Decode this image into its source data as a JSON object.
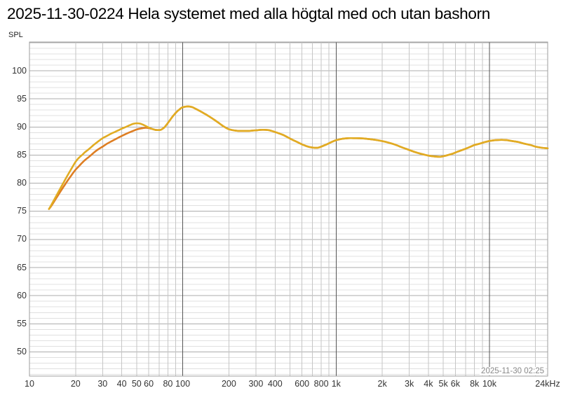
{
  "header": {
    "title": "2025-11-30-0224 Hela systemet med alla högtal med och utan bashorn"
  },
  "chart_data": {
    "type": "line",
    "title": "2025-11-30-0224 Hela systemet med alla högtal med och utan bashorn",
    "ylabel": "SPL",
    "xlabel": "",
    "timestamp": "2025-11-30 02:25",
    "x_scale": "log",
    "xlim": [
      10,
      24000
    ],
    "ylim": [
      45.7,
      105.1
    ],
    "grid": true,
    "legend": "none",
    "y_major_ticks": [
      105,
      100,
      95,
      90,
      85,
      80,
      75,
      70,
      65,
      60,
      55,
      50
    ],
    "y_tick_labels": [
      "100",
      "95",
      "90",
      "85",
      "80",
      "75",
      "70",
      "65",
      "60",
      "55",
      "50"
    ],
    "y_labeled_values": [
      100,
      95,
      90,
      85,
      80,
      75,
      70,
      65,
      60,
      55,
      50
    ],
    "y_minor_step": 1,
    "x_gridlines": [
      20,
      30,
      40,
      50,
      60,
      70,
      80,
      90,
      100,
      200,
      300,
      400,
      500,
      600,
      700,
      800,
      900,
      1000,
      2000,
      3000,
      4000,
      5000,
      6000,
      7000,
      8000,
      9000,
      10000,
      20000
    ],
    "x_dark_gridlines": [
      100,
      1000,
      10000
    ],
    "x_tick_labels": [
      {
        "label": "10",
        "f": 10
      },
      {
        "label": "20",
        "f": 20
      },
      {
        "label": "30",
        "f": 30
      },
      {
        "label": "40",
        "f": 40
      },
      {
        "label": "50",
        "f": 50
      },
      {
        "label": "60",
        "f": 60
      },
      {
        "label": "80",
        "f": 80
      },
      {
        "label": "100",
        "f": 100
      },
      {
        "label": "200",
        "f": 200
      },
      {
        "label": "300",
        "f": 300
      },
      {
        "label": "400",
        "f": 400
      },
      {
        "label": "600",
        "f": 600
      },
      {
        "label": "800",
        "f": 800
      },
      {
        "label": "1k",
        "f": 1000
      },
      {
        "label": "2k",
        "f": 2000
      },
      {
        "label": "3k",
        "f": 3000
      },
      {
        "label": "4k",
        "f": 4000
      },
      {
        "label": "5k",
        "f": 5000
      },
      {
        "label": "6k",
        "f": 6000
      },
      {
        "label": "8k",
        "f": 8000
      },
      {
        "label": "10k",
        "f": 10000
      },
      {
        "label": "24kHz",
        "f": 24000
      }
    ],
    "colors": {
      "curve_yellow": "#E1AC23",
      "curve_orange": "#DE7E23",
      "grid_minor_h": "#E0E0E0",
      "grid_major_h": "#ADADAD",
      "grid_minor_v": "#C6C6C6",
      "grid_dark_v": "#565656",
      "border": "#9E9E9E"
    },
    "series": [
      {
        "name": "curve-orange",
        "color": "#DE7E23",
        "points": [
          [
            13.4,
            75.4
          ],
          [
            14,
            76.1
          ],
          [
            15,
            77.4
          ],
          [
            16,
            78.6
          ],
          [
            17,
            79.7
          ],
          [
            18,
            80.7
          ],
          [
            19,
            81.6
          ],
          [
            20,
            82.4
          ],
          [
            21,
            83.0
          ],
          [
            22,
            83.6
          ],
          [
            23,
            84.1
          ],
          [
            24,
            84.5
          ],
          [
            25,
            84.9
          ],
          [
            26.5,
            85.5
          ],
          [
            28,
            86.0
          ],
          [
            30,
            86.5
          ],
          [
            32,
            87.0
          ],
          [
            34,
            87.4
          ],
          [
            36,
            87.75
          ],
          [
            38,
            88.1
          ],
          [
            40,
            88.4
          ],
          [
            42.5,
            88.75
          ],
          [
            45,
            89.05
          ],
          [
            47.5,
            89.3
          ],
          [
            50,
            89.55
          ],
          [
            52.5,
            89.7
          ],
          [
            55,
            89.8
          ],
          [
            57.5,
            89.85
          ],
          [
            60,
            89.8
          ],
          [
            62,
            89.7
          ],
          [
            64,
            89.6
          ],
          [
            66,
            89.5
          ],
          [
            68,
            89.45
          ],
          [
            70,
            89.45
          ],
          [
            72,
            89.5
          ],
          [
            75,
            89.8
          ],
          [
            78,
            90.3
          ],
          [
            80,
            90.7
          ],
          [
            82,
            91.1
          ],
          [
            85,
            91.7
          ],
          [
            88,
            92.2
          ],
          [
            90,
            92.5
          ],
          [
            93,
            92.9
          ],
          [
            95,
            93.1
          ],
          [
            98,
            93.4
          ],
          [
            100,
            93.5
          ],
          [
            104,
            93.6
          ],
          [
            108,
            93.65
          ],
          [
            112,
            93.6
          ],
          [
            116,
            93.5
          ],
          [
            120,
            93.3
          ],
          [
            126,
            93.0
          ],
          [
            132,
            92.7
          ],
          [
            140,
            92.3
          ],
          [
            150,
            91.8
          ],
          [
            160,
            91.3
          ],
          [
            170,
            90.8
          ],
          [
            180,
            90.3
          ],
          [
            190,
            89.9
          ],
          [
            200,
            89.6
          ],
          [
            215,
            89.4
          ],
          [
            230,
            89.3
          ],
          [
            250,
            89.3
          ],
          [
            270,
            89.3
          ],
          [
            300,
            89.4
          ],
          [
            330,
            89.5
          ],
          [
            360,
            89.45
          ],
          [
            390,
            89.2
          ],
          [
            420,
            88.9
          ],
          [
            450,
            88.6
          ],
          [
            480,
            88.2
          ],
          [
            520,
            87.7
          ],
          [
            560,
            87.3
          ],
          [
            600,
            86.9
          ],
          [
            640,
            86.6
          ],
          [
            680,
            86.4
          ],
          [
            720,
            86.3
          ],
          [
            760,
            86.3
          ],
          [
            800,
            86.5
          ],
          [
            850,
            86.8
          ],
          [
            900,
            87.1
          ],
          [
            950,
            87.4
          ],
          [
            1000,
            87.65
          ],
          [
            1100,
            87.9
          ],
          [
            1200,
            88.0
          ],
          [
            1350,
            88.0
          ],
          [
            1500,
            87.95
          ],
          [
            1700,
            87.8
          ],
          [
            1900,
            87.6
          ],
          [
            2100,
            87.35
          ],
          [
            2400,
            86.9
          ],
          [
            2700,
            86.35
          ],
          [
            3000,
            85.9
          ],
          [
            3300,
            85.5
          ],
          [
            3600,
            85.2
          ],
          [
            4000,
            84.9
          ],
          [
            4400,
            84.75
          ],
          [
            4800,
            84.7
          ],
          [
            5200,
            84.9
          ],
          [
            5700,
            85.2
          ],
          [
            6200,
            85.6
          ],
          [
            6800,
            86.0
          ],
          [
            7400,
            86.4
          ],
          [
            8000,
            86.8
          ],
          [
            8600,
            87.0
          ],
          [
            9200,
            87.25
          ],
          [
            10000,
            87.5
          ],
          [
            11000,
            87.65
          ],
          [
            12000,
            87.7
          ],
          [
            13000,
            87.65
          ],
          [
            14000,
            87.5
          ],
          [
            15500,
            87.3
          ],
          [
            17000,
            87.0
          ],
          [
            18500,
            86.8
          ],
          [
            20000,
            86.5
          ],
          [
            22000,
            86.3
          ],
          [
            24000,
            86.2
          ]
        ]
      },
      {
        "name": "curve-yellow",
        "color": "#E1AC23",
        "points": [
          [
            13.4,
            75.4
          ],
          [
            14,
            76.3
          ],
          [
            15,
            77.8
          ],
          [
            16,
            79.2
          ],
          [
            17,
            80.5
          ],
          [
            18,
            81.7
          ],
          [
            19,
            82.8
          ],
          [
            20,
            83.8
          ],
          [
            21,
            84.5
          ],
          [
            22,
            85.0
          ],
          [
            23,
            85.5
          ],
          [
            24,
            85.9
          ],
          [
            25,
            86.3
          ],
          [
            26.5,
            86.9
          ],
          [
            28,
            87.4
          ],
          [
            30,
            88.0
          ],
          [
            32,
            88.4
          ],
          [
            34,
            88.8
          ],
          [
            36,
            89.1
          ],
          [
            38,
            89.4
          ],
          [
            40,
            89.7
          ],
          [
            42.5,
            90.0
          ],
          [
            45,
            90.3
          ],
          [
            47.5,
            90.55
          ],
          [
            50,
            90.65
          ],
          [
            52.5,
            90.6
          ],
          [
            55,
            90.4
          ],
          [
            57.5,
            90.15
          ],
          [
            60,
            89.9
          ],
          [
            62,
            89.75
          ],
          [
            64,
            89.6
          ],
          [
            66,
            89.5
          ],
          [
            68,
            89.45
          ],
          [
            70,
            89.45
          ],
          [
            72,
            89.5
          ],
          [
            75,
            89.8
          ],
          [
            78,
            90.3
          ],
          [
            80,
            90.7
          ],
          [
            82,
            91.1
          ],
          [
            85,
            91.7
          ],
          [
            88,
            92.2
          ],
          [
            90,
            92.5
          ],
          [
            93,
            92.9
          ],
          [
            95,
            93.1
          ],
          [
            98,
            93.4
          ],
          [
            100,
            93.5
          ],
          [
            104,
            93.6
          ],
          [
            108,
            93.65
          ],
          [
            112,
            93.6
          ],
          [
            116,
            93.5
          ],
          [
            120,
            93.3
          ],
          [
            126,
            93.0
          ],
          [
            132,
            92.7
          ],
          [
            140,
            92.3
          ],
          [
            150,
            91.8
          ],
          [
            160,
            91.3
          ],
          [
            170,
            90.8
          ],
          [
            180,
            90.3
          ],
          [
            190,
            89.9
          ],
          [
            200,
            89.6
          ],
          [
            215,
            89.4
          ],
          [
            230,
            89.3
          ],
          [
            250,
            89.3
          ],
          [
            270,
            89.3
          ],
          [
            300,
            89.4
          ],
          [
            330,
            89.5
          ],
          [
            360,
            89.45
          ],
          [
            390,
            89.2
          ],
          [
            420,
            88.9
          ],
          [
            450,
            88.6
          ],
          [
            480,
            88.2
          ],
          [
            520,
            87.7
          ],
          [
            560,
            87.3
          ],
          [
            600,
            86.9
          ],
          [
            640,
            86.6
          ],
          [
            680,
            86.4
          ],
          [
            720,
            86.3
          ],
          [
            760,
            86.3
          ],
          [
            800,
            86.5
          ],
          [
            850,
            86.8
          ],
          [
            900,
            87.1
          ],
          [
            950,
            87.4
          ],
          [
            1000,
            87.65
          ],
          [
            1100,
            87.9
          ],
          [
            1200,
            88.0
          ],
          [
            1350,
            88.0
          ],
          [
            1500,
            87.95
          ],
          [
            1700,
            87.8
          ],
          [
            1900,
            87.6
          ],
          [
            2100,
            87.35
          ],
          [
            2400,
            86.9
          ],
          [
            2700,
            86.35
          ],
          [
            3000,
            85.9
          ],
          [
            3300,
            85.5
          ],
          [
            3600,
            85.2
          ],
          [
            4000,
            84.9
          ],
          [
            4400,
            84.75
          ],
          [
            4800,
            84.7
          ],
          [
            5200,
            84.9
          ],
          [
            5700,
            85.2
          ],
          [
            6200,
            85.6
          ],
          [
            6800,
            86.0
          ],
          [
            7400,
            86.4
          ],
          [
            8000,
            86.8
          ],
          [
            8600,
            87.0
          ],
          [
            9200,
            87.25
          ],
          [
            10000,
            87.5
          ],
          [
            11000,
            87.65
          ],
          [
            12000,
            87.7
          ],
          [
            13000,
            87.65
          ],
          [
            14000,
            87.5
          ],
          [
            15500,
            87.3
          ],
          [
            17000,
            87.0
          ],
          [
            18500,
            86.8
          ],
          [
            20000,
            86.5
          ],
          [
            22000,
            86.3
          ],
          [
            24000,
            86.2
          ]
        ]
      }
    ]
  }
}
